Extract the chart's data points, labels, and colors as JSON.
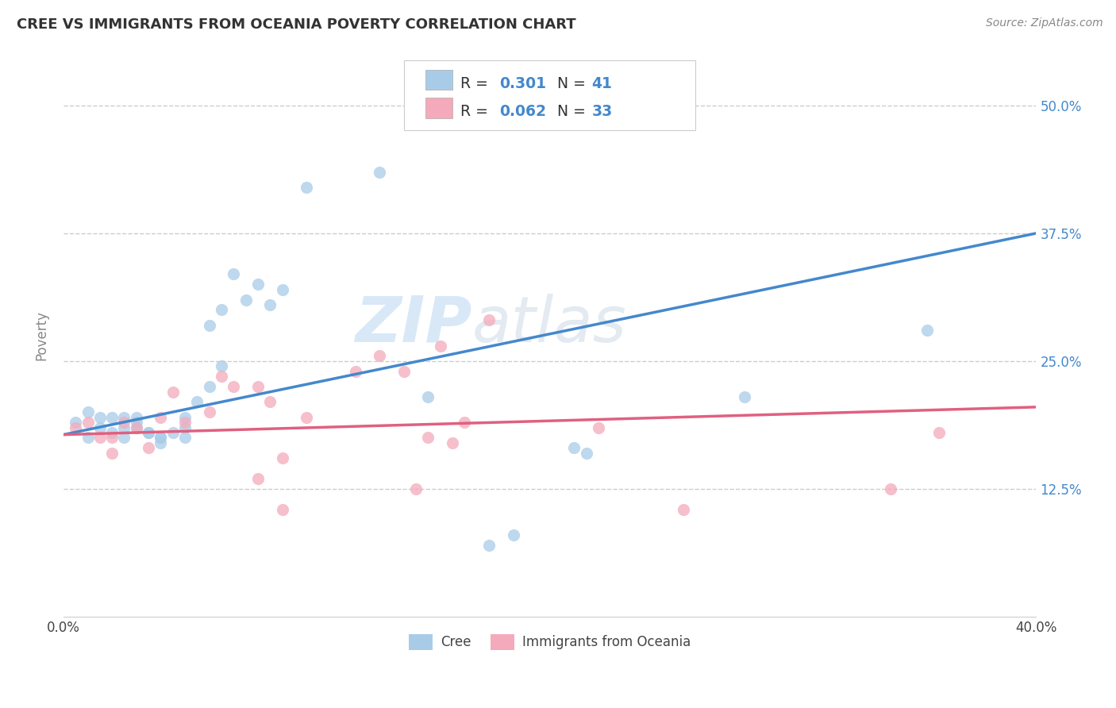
{
  "title": "CREE VS IMMIGRANTS FROM OCEANIA POVERTY CORRELATION CHART",
  "source": "Source: ZipAtlas.com",
  "ylabel": "Poverty",
  "y_tick_labels": [
    "12.5%",
    "25.0%",
    "37.5%",
    "50.0%"
  ],
  "y_tick_values": [
    0.125,
    0.25,
    0.375,
    0.5
  ],
  "x_range": [
    0.0,
    0.4
  ],
  "y_range": [
    0.0,
    0.55
  ],
  "watermark_zip": "ZIP",
  "watermark_atlas": "atlas",
  "legend_blue_R": "R = ",
  "legend_blue_R_val": "0.301",
  "legend_blue_N": "N = ",
  "legend_blue_N_val": "41",
  "legend_pink_R": "R = ",
  "legend_pink_R_val": "0.062",
  "legend_pink_N": "N = ",
  "legend_pink_N_val": "33",
  "legend_label_blue": "Cree",
  "legend_label_pink": "Immigrants from Oceania",
  "blue_color": "#A8CCE8",
  "pink_color": "#F4AABB",
  "blue_line_color": "#4488CC",
  "pink_line_color": "#E06080",
  "blue_scatter_x": [
    0.005,
    0.01,
    0.01,
    0.015,
    0.015,
    0.02,
    0.02,
    0.025,
    0.025,
    0.025,
    0.03,
    0.03,
    0.03,
    0.035,
    0.035,
    0.04,
    0.04,
    0.04,
    0.045,
    0.05,
    0.05,
    0.05,
    0.055,
    0.06,
    0.06,
    0.065,
    0.065,
    0.07,
    0.075,
    0.08,
    0.085,
    0.09,
    0.1,
    0.13,
    0.15,
    0.175,
    0.185,
    0.21,
    0.215,
    0.28,
    0.355
  ],
  "blue_scatter_y": [
    0.19,
    0.2,
    0.175,
    0.195,
    0.185,
    0.195,
    0.18,
    0.195,
    0.185,
    0.175,
    0.195,
    0.19,
    0.185,
    0.18,
    0.18,
    0.175,
    0.175,
    0.17,
    0.18,
    0.195,
    0.185,
    0.175,
    0.21,
    0.285,
    0.225,
    0.245,
    0.3,
    0.335,
    0.31,
    0.325,
    0.305,
    0.32,
    0.42,
    0.435,
    0.215,
    0.07,
    0.08,
    0.165,
    0.16,
    0.215,
    0.28
  ],
  "pink_scatter_x": [
    0.005,
    0.01,
    0.015,
    0.02,
    0.02,
    0.025,
    0.03,
    0.035,
    0.04,
    0.045,
    0.05,
    0.06,
    0.065,
    0.07,
    0.08,
    0.08,
    0.085,
    0.09,
    0.09,
    0.1,
    0.12,
    0.13,
    0.14,
    0.145,
    0.15,
    0.155,
    0.16,
    0.165,
    0.175,
    0.22,
    0.255,
    0.34,
    0.36
  ],
  "pink_scatter_y": [
    0.185,
    0.19,
    0.175,
    0.175,
    0.16,
    0.19,
    0.185,
    0.165,
    0.195,
    0.22,
    0.19,
    0.2,
    0.235,
    0.225,
    0.225,
    0.135,
    0.21,
    0.155,
    0.105,
    0.195,
    0.24,
    0.255,
    0.24,
    0.125,
    0.175,
    0.265,
    0.17,
    0.19,
    0.29,
    0.185,
    0.105,
    0.125,
    0.18
  ],
  "blue_line_y_start": 0.178,
  "blue_line_y_end": 0.375,
  "pink_line_y_start": 0.178,
  "pink_line_y_end": 0.205,
  "dashed_line_color": "#CCCCCC",
  "grid_color": "#DDDDDD",
  "background_color": "#FFFFFF",
  "axis_text_color": "#4488CC",
  "text_color": "#444444"
}
